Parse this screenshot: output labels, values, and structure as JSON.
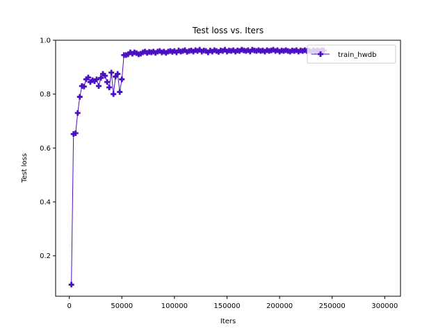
{
  "chart_data": {
    "type": "line",
    "title": "Test loss  vs. Iters",
    "xlabel": "Iters",
    "ylabel": "Test loss",
    "xlim": [
      -13000,
      315000
    ],
    "ylim": [
      0.05,
      1.0
    ],
    "xticks": [
      0,
      50000,
      100000,
      150000,
      200000,
      250000,
      300000
    ],
    "xtick_labels": [
      "0",
      "50000",
      "100000",
      "150000",
      "200000",
      "250000",
      "300000"
    ],
    "yticks": [
      0.2,
      0.4,
      0.6,
      0.8,
      1.0
    ],
    "ytick_labels": [
      "0.2",
      "0.4",
      "0.6",
      "0.8",
      "1.0"
    ],
    "grid": false,
    "legend_position": "top-right",
    "series": [
      {
        "name": "train_hwdb",
        "color": "#4b0fc2",
        "marker": "plus",
        "x": [
          2000,
          4000,
          6000,
          8000,
          10000,
          12000,
          14000,
          16000,
          18000,
          20000,
          22000,
          24000,
          26000,
          28000,
          30000,
          32000,
          34000,
          36000,
          38000,
          40000,
          42000,
          44000,
          46000,
          48000,
          50000,
          52000,
          54000,
          56000,
          58000,
          60000,
          62000,
          64000,
          66000,
          68000,
          70000,
          72000,
          74000,
          76000,
          78000,
          80000,
          82000,
          84000,
          86000,
          88000,
          90000,
          92000,
          94000,
          96000,
          98000,
          100000,
          102000,
          104000,
          106000,
          108000,
          110000,
          112000,
          114000,
          116000,
          118000,
          120000,
          122000,
          124000,
          126000,
          128000,
          130000,
          132000,
          134000,
          136000,
          138000,
          140000,
          142000,
          144000,
          146000,
          148000,
          150000,
          152000,
          154000,
          156000,
          158000,
          160000,
          162000,
          164000,
          166000,
          168000,
          170000,
          172000,
          174000,
          176000,
          178000,
          180000,
          182000,
          184000,
          186000,
          188000,
          190000,
          192000,
          194000,
          196000,
          198000,
          200000,
          202000,
          204000,
          206000,
          208000,
          210000,
          212000,
          214000,
          216000,
          218000,
          220000,
          222000,
          224000,
          226000,
          228000,
          230000,
          232000,
          234000,
          236000,
          238000,
          240000,
          242000
        ],
        "y": [
          0.093,
          0.652,
          0.655,
          0.73,
          0.79,
          0.83,
          0.828,
          0.855,
          0.862,
          0.845,
          0.852,
          0.848,
          0.855,
          0.83,
          0.86,
          0.875,
          0.868,
          0.845,
          0.825,
          0.88,
          0.8,
          0.865,
          0.875,
          0.808,
          0.855,
          0.945,
          0.945,
          0.948,
          0.955,
          0.95,
          0.955,
          0.952,
          0.948,
          0.95,
          0.955,
          0.958,
          0.953,
          0.957,
          0.955,
          0.958,
          0.953,
          0.958,
          0.96,
          0.955,
          0.958,
          0.953,
          0.958,
          0.96,
          0.957,
          0.96,
          0.955,
          0.962,
          0.958,
          0.96,
          0.963,
          0.957,
          0.96,
          0.962,
          0.958,
          0.963,
          0.96,
          0.965,
          0.958,
          0.962,
          0.96,
          0.955,
          0.962,
          0.958,
          0.963,
          0.96,
          0.957,
          0.962,
          0.96,
          0.965,
          0.958,
          0.962,
          0.96,
          0.963,
          0.958,
          0.962,
          0.96,
          0.965,
          0.962,
          0.96,
          0.963,
          0.958,
          0.965,
          0.962,
          0.96,
          0.963,
          0.96,
          0.962,
          0.958,
          0.963,
          0.96,
          0.962,
          0.965,
          0.96,
          0.963,
          0.958,
          0.962,
          0.96,
          0.963,
          0.96,
          0.958,
          0.962,
          0.96,
          0.963,
          0.958,
          0.962,
          0.96,
          0.963,
          0.96,
          0.962,
          0.958,
          0.963,
          0.96,
          0.962,
          0.96,
          0.963,
          0.962
        ]
      }
    ]
  }
}
